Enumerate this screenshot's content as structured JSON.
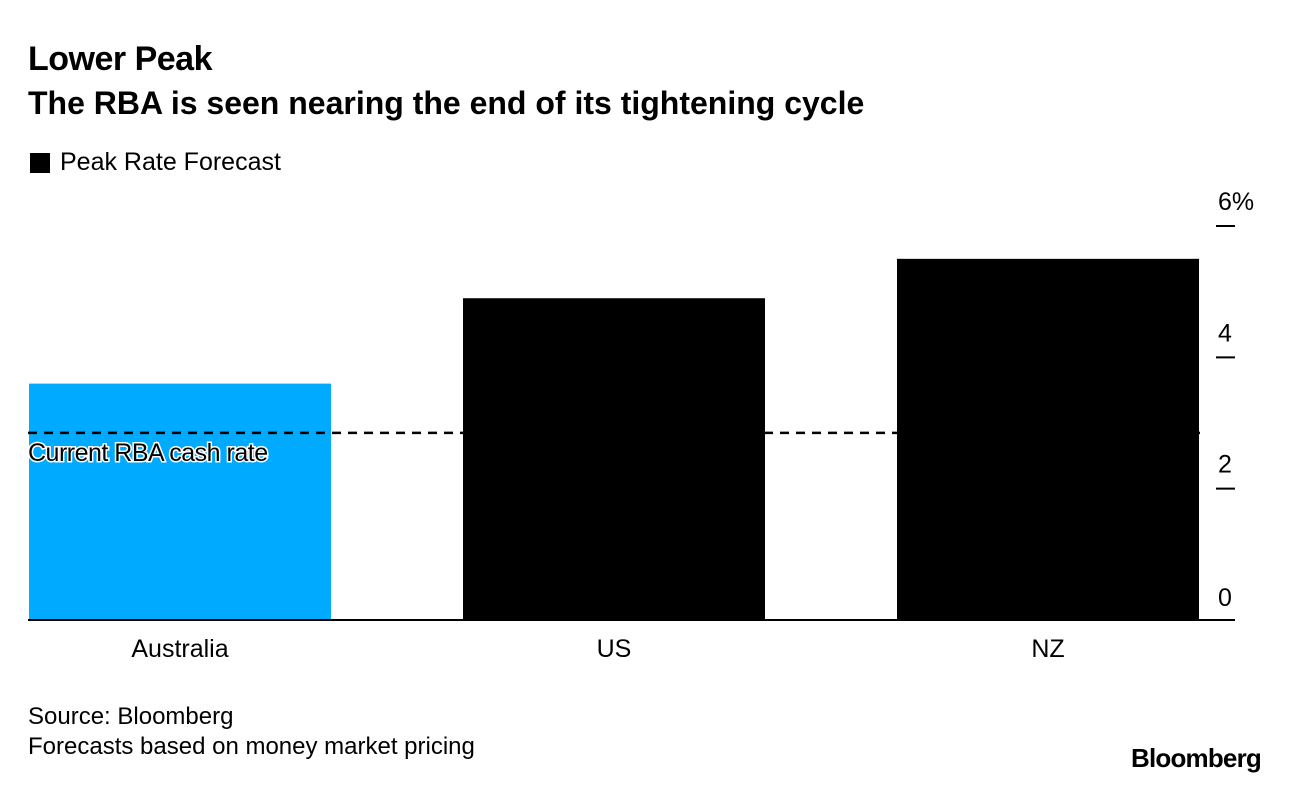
{
  "header": {
    "title": "Lower Peak",
    "subtitle": "The RBA is seen nearing the end of its tightening cycle"
  },
  "legend": {
    "label": "Peak Rate Forecast"
  },
  "footer": {
    "source": "Source: Bloomberg",
    "note": "Forecasts based on money market pricing",
    "brand": "Bloomberg"
  },
  "colors": {
    "highlight": "#00AAFF",
    "bar": "#000000",
    "text": "#000000",
    "background": "#FFFFFF"
  },
  "chart_data": {
    "type": "bar",
    "title": "Lower Peak",
    "subtitle": "The RBA is seen nearing the end of its tightening cycle",
    "categories": [
      "Australia",
      "US",
      "NZ"
    ],
    "series": [
      {
        "name": "Peak Rate Forecast",
        "values": [
          3.6,
          4.9,
          5.5
        ]
      }
    ],
    "highlight_category": "Australia",
    "reference_line": {
      "label": "Current RBA cash rate",
      "value": 2.85,
      "style": "dashed"
    },
    "ylim": [
      0,
      6
    ],
    "yticks": [
      0,
      2,
      4,
      6
    ],
    "ytick_labels": [
      "0",
      "2",
      "4",
      "6%"
    ],
    "yaxis_position": "right",
    "xlabel": "",
    "ylabel": "",
    "grid": false,
    "legend_position": "top-left"
  }
}
